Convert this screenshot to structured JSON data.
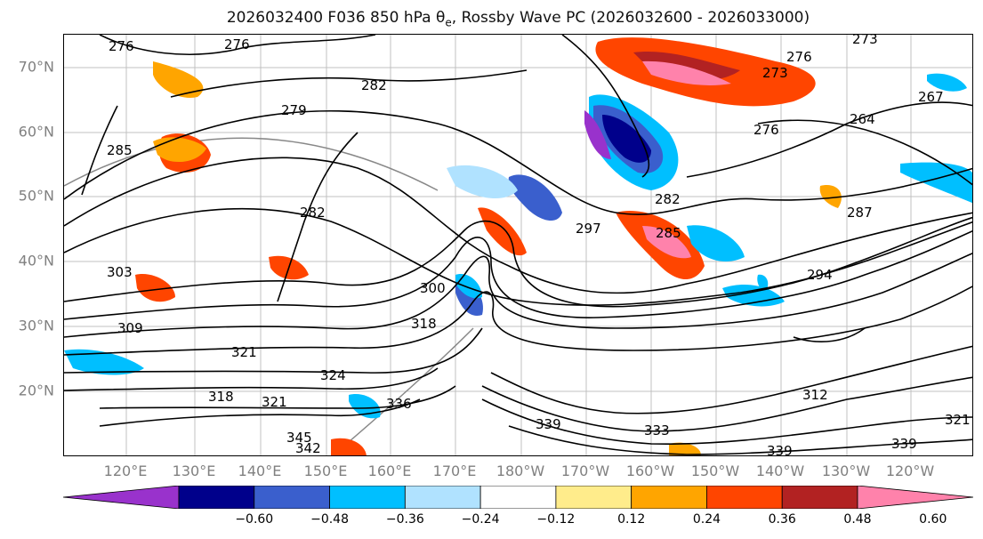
{
  "title": {
    "prefix": "2026032400 F036 850 hPa θ",
    "subscript": "e",
    "suffix": ", Rossby Wave PC (2026032600 - 2026033000)"
  },
  "map": {
    "lat_labels": [
      "70°N",
      "60°N",
      "50°N",
      "40°N",
      "30°N",
      "20°N"
    ],
    "lon_labels": [
      "120°E",
      "130°E",
      "140°E",
      "150°E",
      "160°E",
      "170°E",
      "180°W",
      "170°W",
      "160°W",
      "150°W",
      "140°W",
      "130°W",
      "120°W"
    ],
    "contour_labels": [
      "276",
      "276",
      "273",
      "279",
      "282",
      "285",
      "282",
      "276",
      "267",
      "264",
      "282",
      "297",
      "285",
      "287",
      "294",
      "303",
      "300",
      "309",
      "318",
      "321",
      "324",
      "318",
      "321",
      "336",
      "342",
      "345",
      "339",
      "333",
      "339",
      "339",
      "321",
      "312",
      "273",
      "276"
    ]
  },
  "colorbar": {
    "ticks": [
      "−0.60",
      "−0.48",
      "−0.36",
      "−0.24",
      "−0.12",
      "0.12",
      "0.24",
      "0.36",
      "0.48",
      "0.60"
    ],
    "colors": [
      "#9932cc",
      "#00008b",
      "#3a5fcd",
      "#00bfff",
      "#b0e2ff",
      "#ffffff",
      "#ffec8b",
      "#ffa500",
      "#ff4500",
      "#b22222",
      "#ff82ab"
    ]
  }
}
